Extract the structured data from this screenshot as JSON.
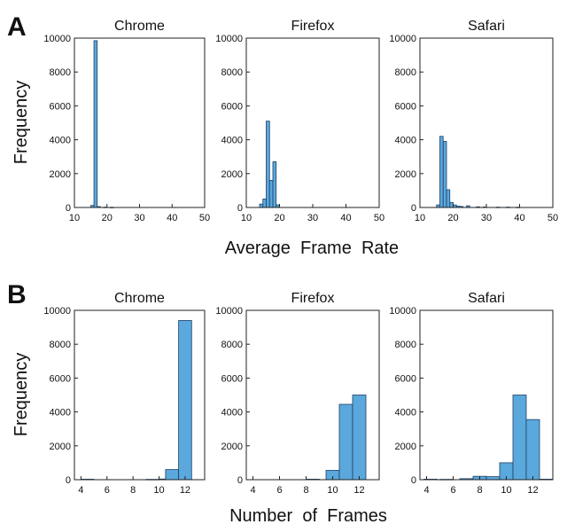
{
  "figure": {
    "panel_a_letter": "A",
    "panel_b_letter": "B",
    "ylabel": "Frequency",
    "xlabel_a": "Average  Frame  Rate",
    "xlabel_b": "Number  of  Frames"
  },
  "colors": {
    "bar_fill": "#5aa8dc",
    "bar_stroke": "#1f3f66",
    "axis": "#222222",
    "text": "#111111"
  },
  "chart_data": [
    {
      "type": "bar",
      "panel": "A",
      "title": "Chrome",
      "xlim": [
        10,
        50
      ],
      "ylim": [
        0,
        10000
      ],
      "bin_width": 1,
      "xticks": [
        10,
        20,
        30,
        40,
        50
      ],
      "yticks": [
        0,
        2000,
        4000,
        6000,
        8000,
        10000
      ],
      "bins": [
        {
          "x0": 15,
          "v": 120
        },
        {
          "x0": 16,
          "v": 9850
        },
        {
          "x0": 17,
          "v": 50
        },
        {
          "x0": 19,
          "v": 20
        },
        {
          "x0": 21,
          "v": 10
        }
      ]
    },
    {
      "type": "bar",
      "panel": "A",
      "title": "Firefox",
      "xlim": [
        10,
        50
      ],
      "ylim": [
        0,
        10000
      ],
      "bin_width": 1,
      "xticks": [
        10,
        20,
        30,
        40,
        50
      ],
      "yticks": [
        0,
        2000,
        4000,
        6000,
        8000,
        10000
      ],
      "bins": [
        {
          "x0": 14,
          "v": 200
        },
        {
          "x0": 15,
          "v": 500
        },
        {
          "x0": 16,
          "v": 5100
        },
        {
          "x0": 17,
          "v": 1600
        },
        {
          "x0": 18,
          "v": 2700
        },
        {
          "x0": 19,
          "v": 150
        }
      ]
    },
    {
      "type": "bar",
      "panel": "A",
      "title": "Safari",
      "xlim": [
        10,
        50
      ],
      "ylim": [
        0,
        10000
      ],
      "bin_width": 1,
      "xticks": [
        10,
        20,
        30,
        40,
        50
      ],
      "yticks": [
        0,
        2000,
        4000,
        6000,
        8000,
        10000
      ],
      "bins": [
        {
          "x0": 15,
          "v": 150
        },
        {
          "x0": 16,
          "v": 4200
        },
        {
          "x0": 17,
          "v": 3900
        },
        {
          "x0": 18,
          "v": 1050
        },
        {
          "x0": 19,
          "v": 300
        },
        {
          "x0": 20,
          "v": 150
        },
        {
          "x0": 21,
          "v": 80
        },
        {
          "x0": 22,
          "v": 60
        },
        {
          "x0": 24,
          "v": 100
        },
        {
          "x0": 27,
          "v": 40
        },
        {
          "x0": 29,
          "v": 30
        },
        {
          "x0": 33,
          "v": 20
        },
        {
          "x0": 36,
          "v": 20
        },
        {
          "x0": 39,
          "v": 15
        }
      ]
    },
    {
      "type": "bar",
      "panel": "B",
      "title": "Chrome",
      "xlim": [
        3.5,
        13.5
      ],
      "ylim": [
        0,
        10000
      ],
      "bin_width": 1,
      "xticks": [
        4,
        6,
        8,
        10,
        12
      ],
      "yticks": [
        0,
        2000,
        4000,
        6000,
        8000,
        10000
      ],
      "bins": [
        {
          "x0": 4,
          "v": 30
        },
        {
          "x0": 9,
          "v": 20
        },
        {
          "x0": 10,
          "v": 40
        },
        {
          "x0": 10.5,
          "v": 600
        },
        {
          "x0": 11.5,
          "v": 9400
        }
      ]
    },
    {
      "type": "bar",
      "panel": "B",
      "title": "Firefox",
      "xlim": [
        3.5,
        13.5
      ],
      "ylim": [
        0,
        10000
      ],
      "bin_width": 1,
      "xticks": [
        4,
        6,
        8,
        10,
        12
      ],
      "yticks": [
        0,
        2000,
        4000,
        6000,
        8000,
        10000
      ],
      "bins": [
        {
          "x0": 8,
          "v": 30
        },
        {
          "x0": 9.5,
          "v": 550
        },
        {
          "x0": 10.5,
          "v": 4450
        },
        {
          "x0": 11.5,
          "v": 5000
        }
      ]
    },
    {
      "type": "bar",
      "panel": "B",
      "title": "Safari",
      "xlim": [
        3.5,
        13.5
      ],
      "ylim": [
        0,
        10000
      ],
      "bin_width": 1,
      "xticks": [
        4,
        6,
        8,
        10,
        12
      ],
      "yticks": [
        0,
        2000,
        4000,
        6000,
        8000,
        10000
      ],
      "bins": [
        {
          "x0": 3.8,
          "v": 30
        },
        {
          "x0": 5,
          "v": 20
        },
        {
          "x0": 6.5,
          "v": 60
        },
        {
          "x0": 7.5,
          "v": 200
        },
        {
          "x0": 8.5,
          "v": 180
        },
        {
          "x0": 9.5,
          "v": 1000
        },
        {
          "x0": 10.5,
          "v": 5000
        },
        {
          "x0": 11.5,
          "v": 3550
        },
        {
          "x0": 12.5,
          "v": 30
        }
      ]
    }
  ]
}
